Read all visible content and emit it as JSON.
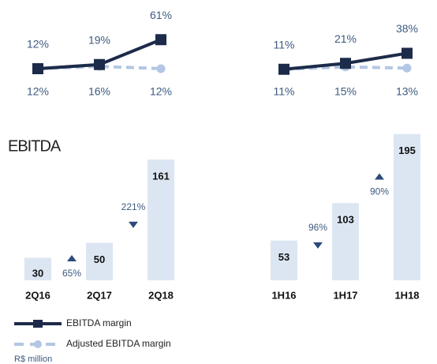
{
  "title": "EBITDA",
  "note": "R$ million",
  "legend": [
    {
      "name": "EBITDA margin",
      "color": "#1d2b4a",
      "dashed": false
    },
    {
      "name": "Adjusted EBITDA margin",
      "color": "#b3c6e4",
      "dashed": true
    }
  ],
  "chart_data": [
    {
      "type": "bar",
      "categories": [
        "2Q16",
        "2Q17",
        "2Q18"
      ],
      "values": [
        30,
        50,
        161
      ],
      "color": "#dce6f2",
      "ylim": [
        0,
        200
      ],
      "margin_ylim": [
        0,
        128
      ],
      "series": [
        {
          "values": [
            12,
            19,
            61
          ],
          "value_labels": [
            "12%",
            "19%",
            "61%"
          ]
        },
        {
          "values": [
            12,
            16,
            12
          ],
          "value_labels": [
            "12%",
            "16%",
            "12%"
          ]
        }
      ],
      "growth": [
        {
          "value": 65,
          "label": "65%",
          "direction": "up"
        },
        {
          "value": 221,
          "label": "221%",
          "direction": "down"
        }
      ]
    },
    {
      "type": "bar",
      "categories": [
        "1H16",
        "1H17",
        "1H18"
      ],
      "values": [
        53,
        103,
        195
      ],
      "color": "#dce6f2",
      "ylim": [
        0,
        200
      ],
      "margin_ylim": [
        0,
        128
      ],
      "series": [
        {
          "values": [
            11,
            21,
            38
          ],
          "value_labels": [
            "11%",
            "21%",
            "38%"
          ]
        },
        {
          "values": [
            11,
            15,
            13
          ],
          "value_labels": [
            "11%",
            "15%",
            "13%"
          ]
        }
      ],
      "growth": [
        {
          "value": 96,
          "label": "96%",
          "direction": "down"
        },
        {
          "value": 90,
          "label": "90%",
          "direction": "up"
        }
      ]
    }
  ]
}
